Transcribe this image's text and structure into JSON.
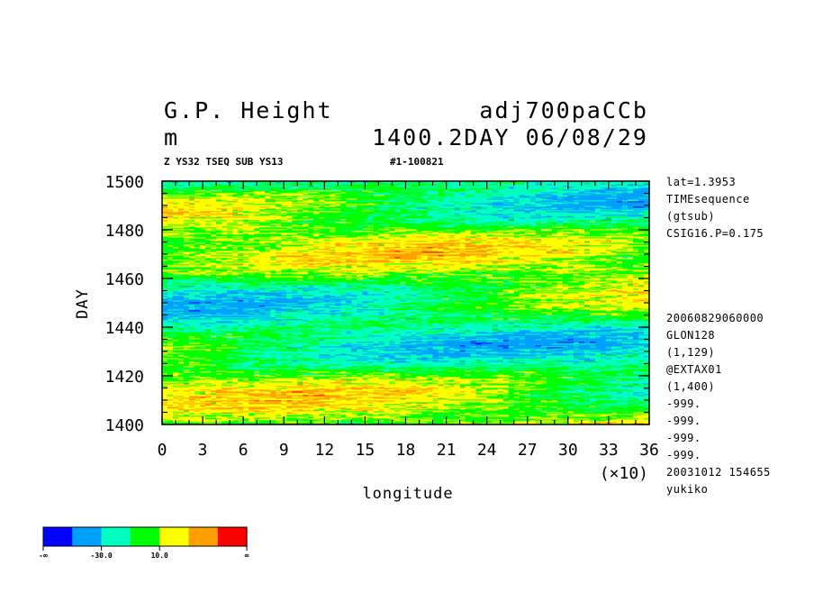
{
  "header": {
    "title_left": "G.P. Height",
    "title_right": "adj700paCCb",
    "unit": "m",
    "time_label": "1400.2DAY 06/08/29",
    "sub_left": "Z YS32 TSEQ SUB YS13",
    "sub_right": "#1-100821"
  },
  "side_top": [
    "lat=1.3953",
    "TIMEsequence",
    "(gtsub)",
    "CSIG16.P=0.175"
  ],
  "side_bottom": [
    "20060829060000",
    "GLON128",
    "(1,129)",
    "@EXTAX01",
    "(1,400)",
    "-999.",
    "-999.",
    "-999.",
    "-999.",
    "20031012 154655",
    "yukiko"
  ],
  "colorbar": {
    "colors": [
      "#0000ff",
      "#00a0ff",
      "#00ffc0",
      "#00ff00",
      "#ffff00",
      "#ffa000",
      "#ff0000"
    ],
    "labels": [
      "-∞",
      "-30.0",
      "10.0",
      "∞"
    ]
  },
  "chart_data": {
    "type": "heatmap",
    "title": "G.P. Height",
    "xlabel": "longitude",
    "ylabel": "DAY",
    "x_scale_note": "(×10)",
    "xlim": [
      0,
      36
    ],
    "ylim": [
      1400,
      1500
    ],
    "x_ticks": [
      "0",
      "3",
      "6",
      "9",
      "12",
      "15",
      "18",
      "21",
      "24",
      "27",
      "30",
      "33",
      "36"
    ],
    "y_ticks": [
      "1400",
      "1420",
      "1440",
      "1460",
      "1480",
      "1500"
    ],
    "color_levels": [
      "-∞",
      "-30.0",
      "10.0",
      "∞"
    ]
  }
}
